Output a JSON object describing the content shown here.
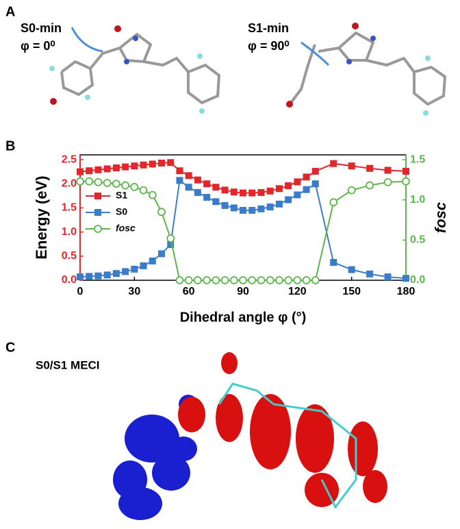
{
  "panels": {
    "a": "A",
    "b": "B",
    "c": "C"
  },
  "molecules": {
    "left_label": "S0-min",
    "left_angle": "φ = 0⁰",
    "right_label": "S1-min",
    "right_angle": "φ = 90⁰",
    "meci_label": "S0/S1 MECI"
  },
  "chart_data": {
    "type": "line",
    "xlabel": "Dihedral angle φ (°)",
    "ylabel": "Energy (eV)",
    "y2label": "fosc",
    "x": [
      0,
      5,
      10,
      15,
      20,
      25,
      30,
      35,
      40,
      45,
      50,
      55,
      60,
      65,
      70,
      75,
      80,
      85,
      90,
      95,
      100,
      105,
      110,
      115,
      120,
      125,
      130,
      140,
      150,
      160,
      170,
      180
    ],
    "series": [
      {
        "name": "S1",
        "color": "#e3262a",
        "marker": "square",
        "values": [
          2.25,
          2.27,
          2.29,
          2.31,
          2.33,
          2.35,
          2.37,
          2.39,
          2.41,
          2.43,
          2.44,
          2.27,
          2.17,
          2.08,
          2.0,
          1.93,
          1.87,
          1.83,
          1.81,
          1.81,
          1.82,
          1.85,
          1.9,
          1.96,
          2.04,
          2.14,
          2.26,
          2.42,
          2.37,
          2.32,
          2.28,
          2.26
        ]
      },
      {
        "name": "S0",
        "color": "#3b7cc8",
        "marker": "square",
        "values": [
          0.07,
          0.08,
          0.09,
          0.11,
          0.14,
          0.18,
          0.23,
          0.3,
          0.4,
          0.55,
          0.74,
          2.07,
          1.93,
          1.82,
          1.72,
          1.63,
          1.55,
          1.5,
          1.45,
          1.45,
          1.48,
          1.52,
          1.58,
          1.67,
          1.77,
          1.88,
          2.0,
          0.37,
          0.22,
          0.13,
          0.07,
          0.04
        ]
      },
      {
        "name": "fosc",
        "color": "#5bb54a",
        "marker": "open-circle",
        "axis": "y2",
        "values": [
          1.23,
          1.23,
          1.22,
          1.21,
          1.2,
          1.18,
          1.16,
          1.12,
          1.06,
          0.85,
          0.52,
          0,
          0,
          0,
          0,
          0,
          0,
          0,
          0,
          0,
          0,
          0,
          0,
          0,
          0,
          0,
          0,
          0.97,
          1.12,
          1.18,
          1.22,
          1.23
        ]
      }
    ],
    "xlim": [
      0,
      180
    ],
    "xticks": [
      0,
      30,
      60,
      90,
      120,
      150,
      180
    ],
    "ylim": [
      0,
      2.6
    ],
    "yticks": [
      {
        "value": 0,
        "label": "0.0"
      },
      {
        "value": 0.5,
        "label": "0.5"
      },
      {
        "value": 1,
        "label": "1.0"
      },
      {
        "value": 1.5,
        "label": "1.5"
      },
      {
        "value": 2,
        "label": "2.0"
      },
      {
        "value": 2.5,
        "label": "2.5"
      }
    ],
    "y2lim": [
      0,
      1.56
    ],
    "y2ticks": [
      {
        "value": 0,
        "label": "0.0"
      },
      {
        "value": 0.5,
        "label": "0.5"
      },
      {
        "value": 1,
        "label": "1.0"
      },
      {
        "value": 1.5,
        "label": "1.5"
      }
    ],
    "left_axis_color": "#e3262a",
    "right_axis_color": "#5bb54a",
    "legend": "upper left"
  }
}
